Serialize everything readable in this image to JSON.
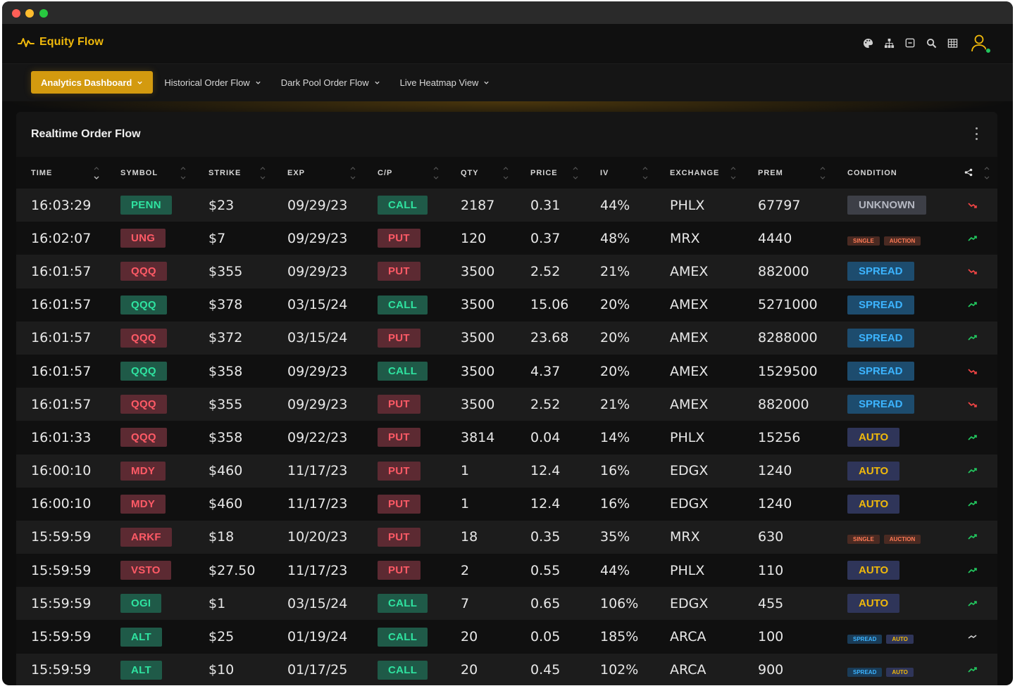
{
  "app": {
    "name": "Equity Flow"
  },
  "header_icons": [
    "palette-icon",
    "sitemap-icon",
    "minus-square-icon",
    "search-icon",
    "grid-icon"
  ],
  "nav": [
    {
      "label": "Analytics Dashboard",
      "active": true
    },
    {
      "label": "Historical Order Flow",
      "active": false
    },
    {
      "label": "Dark Pool Order Flow",
      "active": false
    },
    {
      "label": "Live Heatmap View",
      "active": false
    }
  ],
  "panel": {
    "title": "Realtime Order Flow"
  },
  "columns": [
    "TIME",
    "SYMBOL",
    "STRIKE",
    "EXP",
    "C/P",
    "QTY",
    "PRICE",
    "IV",
    "EXCHANGE",
    "PREM",
    "CONDITION"
  ],
  "colors": {
    "accent": "#f0b90b",
    "up": "#22c55e",
    "down": "#ef4444"
  },
  "rows": [
    {
      "time": "16:03:29",
      "symbol": "PENN",
      "sym_side": "green",
      "strike": "$23",
      "exp": "09/29/23",
      "cp": "CALL",
      "qty": "2187",
      "price": "0.31",
      "iv": "44%",
      "exchange": "PHLX",
      "prem": "67797",
      "condition": [
        "UNKNOWN"
      ],
      "trend": "down"
    },
    {
      "time": "16:02:07",
      "symbol": "UNG",
      "sym_side": "red",
      "strike": "$7",
      "exp": "09/29/23",
      "cp": "PUT",
      "qty": "120",
      "price": "0.37",
      "iv": "48%",
      "exchange": "MRX",
      "prem": "4440",
      "condition": [
        "SINGLE",
        "AUCTION"
      ],
      "trend": "up"
    },
    {
      "time": "16:01:57",
      "symbol": "QQQ",
      "sym_side": "red",
      "strike": "$355",
      "exp": "09/29/23",
      "cp": "PUT",
      "qty": "3500",
      "price": "2.52",
      "iv": "21%",
      "exchange": "AMEX",
      "prem": "882000",
      "condition": [
        "SPREAD"
      ],
      "trend": "down"
    },
    {
      "time": "16:01:57",
      "symbol": "QQQ",
      "sym_side": "green",
      "strike": "$378",
      "exp": "03/15/24",
      "cp": "CALL",
      "qty": "3500",
      "price": "15.06",
      "iv": "20%",
      "exchange": "AMEX",
      "prem": "5271000",
      "condition": [
        "SPREAD"
      ],
      "trend": "up"
    },
    {
      "time": "16:01:57",
      "symbol": "QQQ",
      "sym_side": "red",
      "strike": "$372",
      "exp": "03/15/24",
      "cp": "PUT",
      "qty": "3500",
      "price": "23.68",
      "iv": "20%",
      "exchange": "AMEX",
      "prem": "8288000",
      "condition": [
        "SPREAD"
      ],
      "trend": "up"
    },
    {
      "time": "16:01:57",
      "symbol": "QQQ",
      "sym_side": "green",
      "strike": "$358",
      "exp": "09/29/23",
      "cp": "CALL",
      "qty": "3500",
      "price": "4.37",
      "iv": "20%",
      "exchange": "AMEX",
      "prem": "1529500",
      "condition": [
        "SPREAD"
      ],
      "trend": "down"
    },
    {
      "time": "16:01:57",
      "symbol": "QQQ",
      "sym_side": "red",
      "strike": "$355",
      "exp": "09/29/23",
      "cp": "PUT",
      "qty": "3500",
      "price": "2.52",
      "iv": "21%",
      "exchange": "AMEX",
      "prem": "882000",
      "condition": [
        "SPREAD"
      ],
      "trend": "down"
    },
    {
      "time": "16:01:33",
      "symbol": "QQQ",
      "sym_side": "red",
      "strike": "$358",
      "exp": "09/22/23",
      "cp": "PUT",
      "qty": "3814",
      "price": "0.04",
      "iv": "14%",
      "exchange": "PHLX",
      "prem": "15256",
      "condition": [
        "AUTO"
      ],
      "trend": "up"
    },
    {
      "time": "16:00:10",
      "symbol": "MDY",
      "sym_side": "red",
      "strike": "$460",
      "exp": "11/17/23",
      "cp": "PUT",
      "qty": "1",
      "price": "12.4",
      "iv": "16%",
      "exchange": "EDGX",
      "prem": "1240",
      "condition": [
        "AUTO"
      ],
      "trend": "up"
    },
    {
      "time": "16:00:10",
      "symbol": "MDY",
      "sym_side": "red",
      "strike": "$460",
      "exp": "11/17/23",
      "cp": "PUT",
      "qty": "1",
      "price": "12.4",
      "iv": "16%",
      "exchange": "EDGX",
      "prem": "1240",
      "condition": [
        "AUTO"
      ],
      "trend": "up"
    },
    {
      "time": "15:59:59",
      "symbol": "ARKF",
      "sym_side": "red",
      "strike": "$18",
      "exp": "10/20/23",
      "cp": "PUT",
      "qty": "18",
      "price": "0.35",
      "iv": "35%",
      "exchange": "MRX",
      "prem": "630",
      "condition": [
        "SINGLE",
        "AUCTION"
      ],
      "trend": "up"
    },
    {
      "time": "15:59:59",
      "symbol": "VSTO",
      "sym_side": "red",
      "strike": "$27.50",
      "exp": "11/17/23",
      "cp": "PUT",
      "qty": "2",
      "price": "0.55",
      "iv": "44%",
      "exchange": "PHLX",
      "prem": "110",
      "condition": [
        "AUTO"
      ],
      "trend": "up"
    },
    {
      "time": "15:59:59",
      "symbol": "OGI",
      "sym_side": "green",
      "strike": "$1",
      "exp": "03/15/24",
      "cp": "CALL",
      "qty": "7",
      "price": "0.65",
      "iv": "106%",
      "exchange": "EDGX",
      "prem": "455",
      "condition": [
        "AUTO"
      ],
      "trend": "up"
    },
    {
      "time": "15:59:59",
      "symbol": "ALT",
      "sym_side": "green",
      "strike": "$25",
      "exp": "01/19/24",
      "cp": "CALL",
      "qty": "20",
      "price": "0.05",
      "iv": "185%",
      "exchange": "ARCA",
      "prem": "100",
      "condition": [
        "SPREAD",
        "AUTO"
      ],
      "trend": "neutral"
    },
    {
      "time": "15:59:59",
      "symbol": "ALT",
      "sym_side": "green",
      "strike": "$10",
      "exp": "01/17/25",
      "cp": "CALL",
      "qty": "20",
      "price": "0.45",
      "iv": "102%",
      "exchange": "ARCA",
      "prem": "900",
      "condition": [
        "SPREAD",
        "AUTO"
      ],
      "trend": "up"
    }
  ]
}
